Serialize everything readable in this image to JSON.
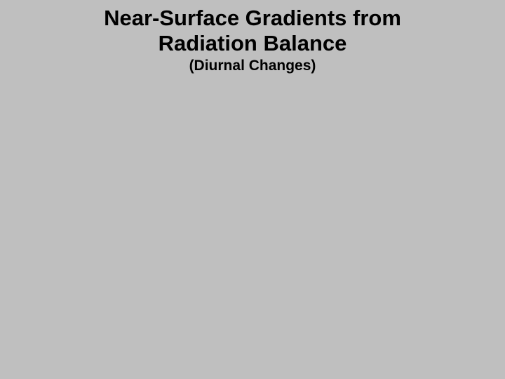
{
  "slide": {
    "background_color": "#bfbfbf",
    "title_line1": "Near-Surface Gradients from",
    "title_line2": "Radiation Balance",
    "subtitle": "(Diurnal Changes)",
    "title_fontsize": 31,
    "subtitle_fontsize": 21,
    "text_color": "#000000",
    "font_weight": "bold",
    "font_family": "Arial"
  }
}
